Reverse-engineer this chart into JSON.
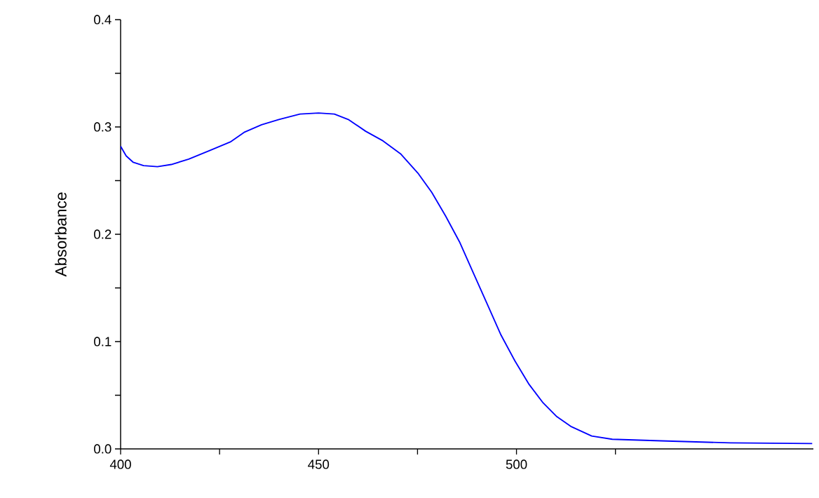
{
  "chart_data": {
    "type": "line",
    "ylabel": "Absorbance",
    "x": [
      400,
      401.4,
      403.2,
      405.8,
      409.3,
      412.8,
      417.2,
      422.5,
      427.7,
      431.2,
      435.6,
      440,
      445.3,
      450,
      454,
      457.5,
      461.9,
      466.3,
      470.7,
      475.1,
      478.6,
      482.1,
      485.6,
      489.1,
      492.6,
      496.1,
      499.6,
      503.2,
      506.7,
      510.2,
      513.7,
      519,
      524.2,
      536.5,
      554,
      574.7
    ],
    "series": [
      {
        "color": "#0000ff",
        "values": [
          0.282,
          0.273,
          0.267,
          0.264,
          0.263,
          0.265,
          0.27,
          0.278,
          0.286,
          0.295,
          0.302,
          0.307,
          0.312,
          0.313,
          0.312,
          0.307,
          0.296,
          0.287,
          0.275,
          0.257,
          0.239,
          0.217,
          0.193,
          0.164,
          0.135,
          0.106,
          0.082,
          0.06,
          0.043,
          0.03,
          0.021,
          0.012,
          0.009,
          0.0075,
          0.0056,
          0.005
        ]
      }
    ],
    "xlim": [
      400,
      575
    ],
    "xticks": [
      400,
      {
        "value": 425,
        "label": null
      },
      450,
      {
        "value": 475,
        "label": null
      },
      500,
      {
        "value": 525,
        "label": null
      }
    ],
    "ylim": [
      0,
      0.4
    ],
    "yticks": [
      {
        "value": 0,
        "label": "0.0"
      },
      {
        "value": 0.05,
        "label": null
      },
      0.1,
      {
        "value": 0.15,
        "label": null
      },
      0.2,
      {
        "value": 0.25,
        "label": null
      },
      0.3,
      {
        "value": 0.35,
        "label": null
      },
      0.4
    ]
  }
}
